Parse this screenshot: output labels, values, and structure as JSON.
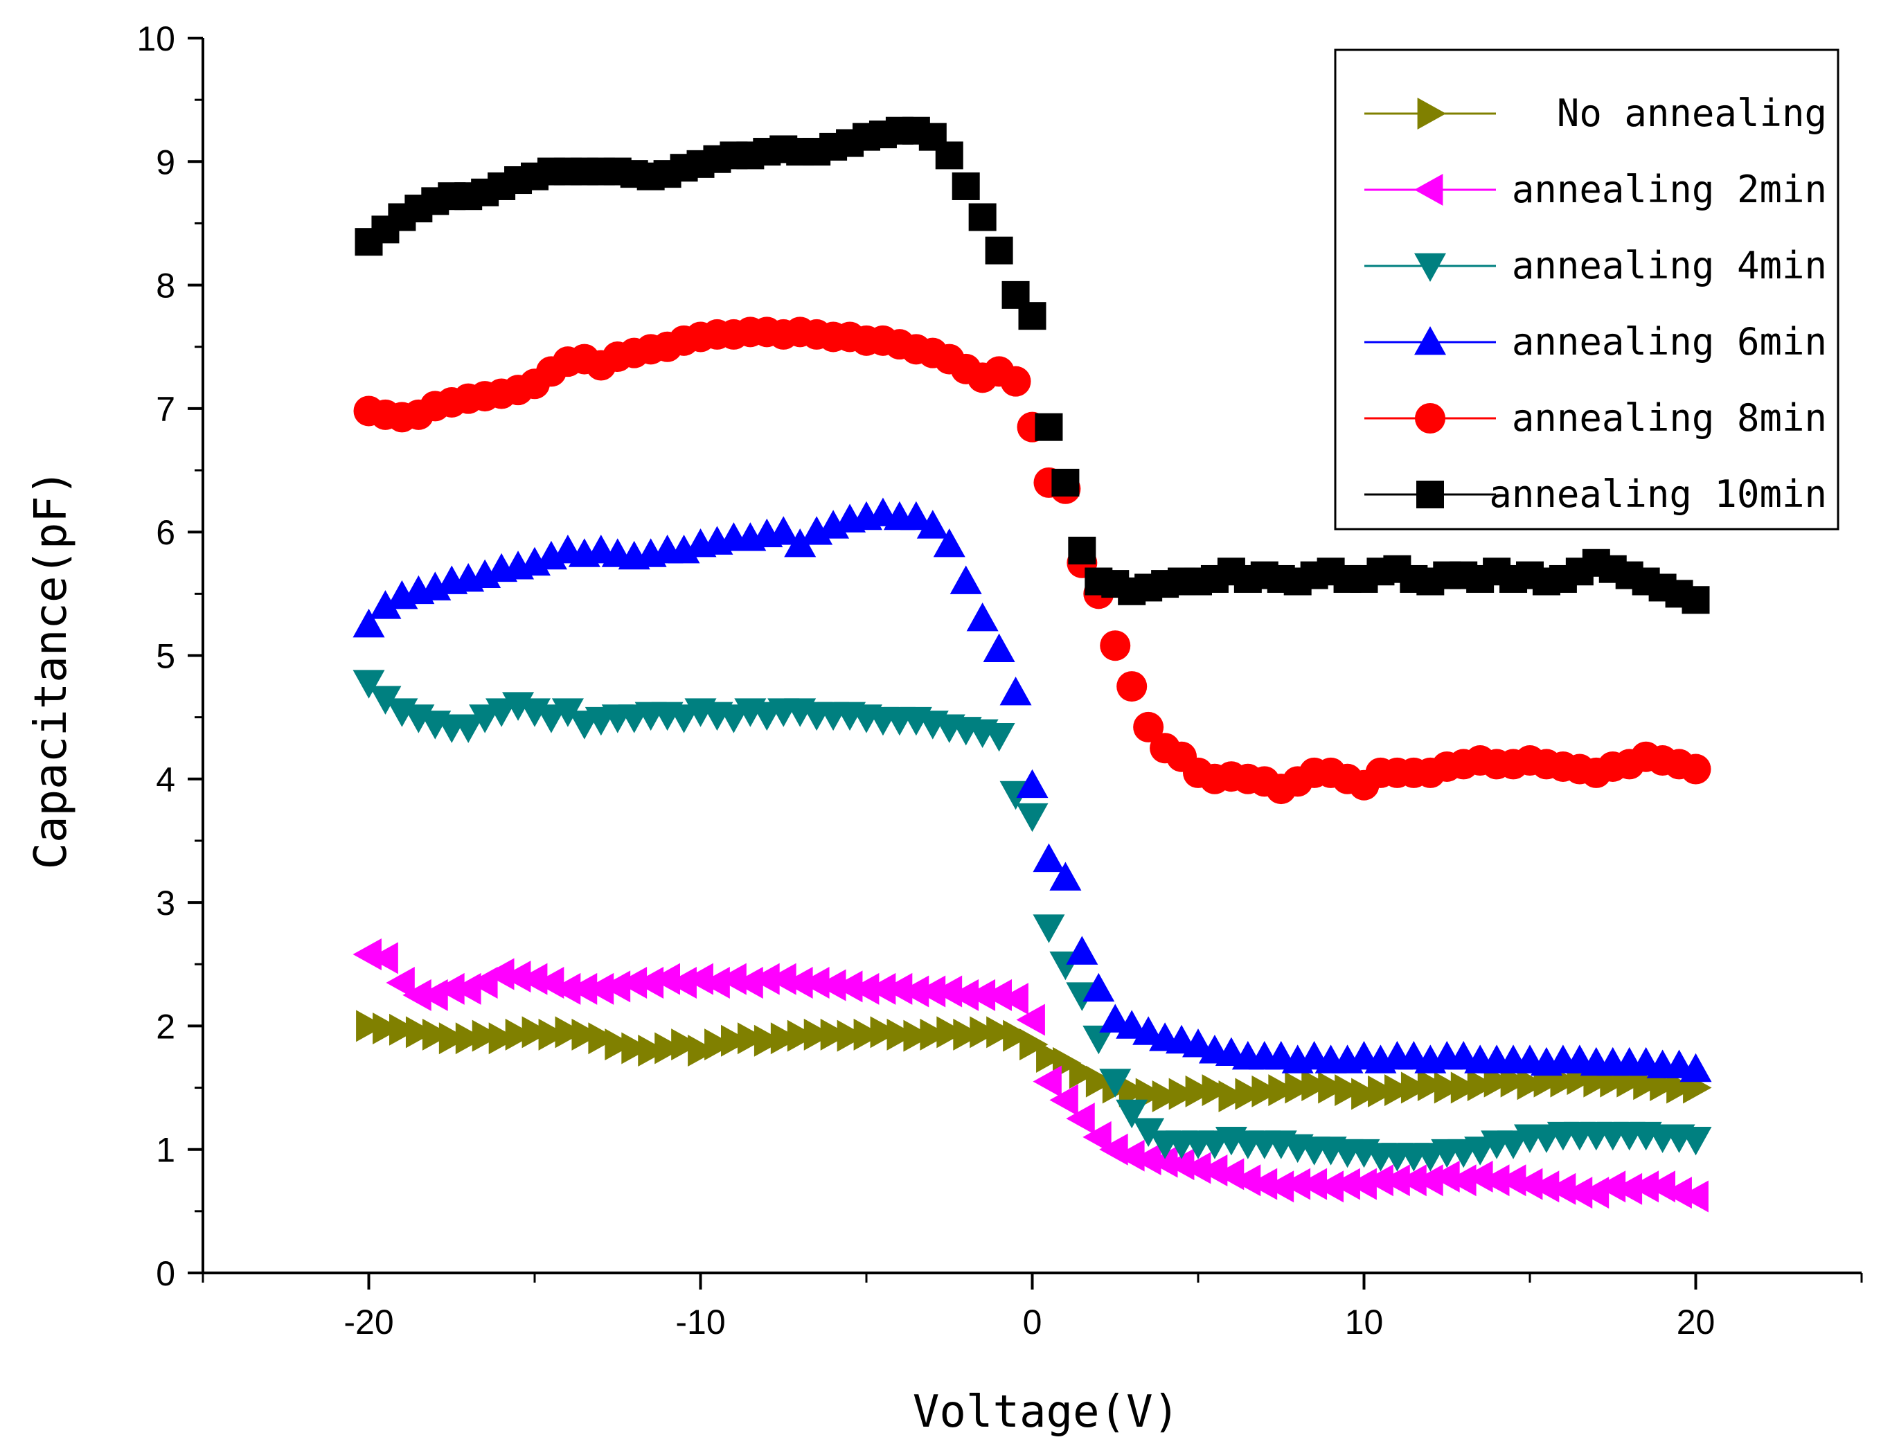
{
  "chart_data": {
    "type": "scatter",
    "title": "",
    "xlabel": "Voltage(V)",
    "ylabel": "Capacitance(pF)",
    "xlim": [
      -25,
      25
    ],
    "ylim": [
      0,
      10
    ],
    "xticks": [
      -20,
      -10,
      0,
      10,
      20
    ],
    "yticks": [
      0,
      1,
      2,
      3,
      4,
      5,
      6,
      7,
      8,
      9,
      10
    ],
    "legend_position": "top-right",
    "x": [
      -20,
      -19.5,
      -19,
      -18.5,
      -18,
      -17.5,
      -17,
      -16.5,
      -16,
      -15.5,
      -15,
      -14.5,
      -14,
      -13.5,
      -13,
      -12.5,
      -12,
      -11.5,
      -11,
      -10.5,
      -10,
      -9.5,
      -9,
      -8.5,
      -8,
      -7.5,
      -7,
      -6.5,
      -6,
      -5.5,
      -5,
      -4.5,
      -4,
      -3.5,
      -3,
      -2.5,
      -2,
      -1.5,
      -1,
      -0.5,
      0,
      0.5,
      1,
      1.5,
      2,
      2.5,
      3,
      3.5,
      4,
      4.5,
      5,
      5.5,
      6,
      6.5,
      7,
      7.5,
      8,
      8.5,
      9,
      9.5,
      10,
      10.5,
      11,
      11.5,
      12,
      12.5,
      13,
      13.5,
      14,
      14.5,
      15,
      15.5,
      16,
      16.5,
      17,
      17.5,
      18,
      18.5,
      19,
      19.5,
      20
    ],
    "series": [
      {
        "name": "No annealing",
        "marker": "triangle-right",
        "color": "#808000",
        "values": [
          2.0,
          1.98,
          1.97,
          1.95,
          1.93,
          1.9,
          1.9,
          1.92,
          1.9,
          1.93,
          1.95,
          1.93,
          1.95,
          1.93,
          1.9,
          1.85,
          1.82,
          1.8,
          1.82,
          1.85,
          1.8,
          1.85,
          1.88,
          1.9,
          1.88,
          1.9,
          1.92,
          1.93,
          1.93,
          1.92,
          1.93,
          1.95,
          1.93,
          1.92,
          1.93,
          1.95,
          1.93,
          1.95,
          1.95,
          1.92,
          1.85,
          1.75,
          1.7,
          1.62,
          1.55,
          1.5,
          1.47,
          1.45,
          1.43,
          1.45,
          1.47,
          1.48,
          1.43,
          1.45,
          1.47,
          1.48,
          1.5,
          1.52,
          1.5,
          1.48,
          1.45,
          1.47,
          1.48,
          1.5,
          1.52,
          1.5,
          1.5,
          1.52,
          1.55,
          1.55,
          1.53,
          1.55,
          1.55,
          1.57,
          1.55,
          1.55,
          1.55,
          1.53,
          1.52,
          1.5,
          1.5
        ]
      },
      {
        "name": "annealing 2min",
        "marker": "triangle-left",
        "color": "#ff00ff",
        "values": [
          2.58,
          2.55,
          2.35,
          2.25,
          2.25,
          2.3,
          2.3,
          2.35,
          2.42,
          2.4,
          2.38,
          2.35,
          2.3,
          2.3,
          2.3,
          2.32,
          2.35,
          2.35,
          2.38,
          2.35,
          2.38,
          2.35,
          2.38,
          2.35,
          2.38,
          2.38,
          2.35,
          2.35,
          2.33,
          2.32,
          2.3,
          2.3,
          2.3,
          2.28,
          2.28,
          2.28,
          2.25,
          2.25,
          2.25,
          2.22,
          2.05,
          1.55,
          1.4,
          1.25,
          1.1,
          1.0,
          0.95,
          0.92,
          0.9,
          0.88,
          0.85,
          0.83,
          0.8,
          0.75,
          0.72,
          0.7,
          0.72,
          0.72,
          0.7,
          0.72,
          0.72,
          0.75,
          0.75,
          0.75,
          0.75,
          0.78,
          0.75,
          0.78,
          0.75,
          0.75,
          0.72,
          0.7,
          0.68,
          0.65,
          0.65,
          0.7,
          0.68,
          0.7,
          0.7,
          0.65,
          0.62
        ]
      },
      {
        "name": "annealing 4min",
        "marker": "triangle-down",
        "color": "#008080",
        "values": [
          4.78,
          4.65,
          4.55,
          4.5,
          4.45,
          4.42,
          4.42,
          4.5,
          4.55,
          4.6,
          4.55,
          4.5,
          4.55,
          4.45,
          4.48,
          4.5,
          4.5,
          4.52,
          4.52,
          4.5,
          4.55,
          4.52,
          4.5,
          4.55,
          4.52,
          4.55,
          4.55,
          4.52,
          4.52,
          4.52,
          4.5,
          4.48,
          4.48,
          4.48,
          4.45,
          4.42,
          4.4,
          4.38,
          4.35,
          3.88,
          3.7,
          2.8,
          2.5,
          2.25,
          1.9,
          1.55,
          1.3,
          1.15,
          1.05,
          1.05,
          1.05,
          1.05,
          1.08,
          1.05,
          1.05,
          1.05,
          1.02,
          1.0,
          1.0,
          0.98,
          0.98,
          0.95,
          0.95,
          0.95,
          0.95,
          0.98,
          0.98,
          1.0,
          1.05,
          1.05,
          1.1,
          1.1,
          1.12,
          1.12,
          1.12,
          1.12,
          1.12,
          1.12,
          1.1,
          1.1,
          1.08
        ]
      },
      {
        "name": "annealing 6min",
        "marker": "triangle-up",
        "color": "#0000ff",
        "values": [
          5.25,
          5.4,
          5.48,
          5.52,
          5.55,
          5.6,
          5.62,
          5.65,
          5.7,
          5.72,
          5.75,
          5.8,
          5.85,
          5.82,
          5.85,
          5.82,
          5.8,
          5.82,
          5.85,
          5.85,
          5.9,
          5.92,
          5.95,
          5.95,
          5.98,
          6.0,
          5.9,
          6.0,
          6.05,
          6.1,
          6.12,
          6.15,
          6.12,
          6.12,
          6.05,
          5.9,
          5.6,
          5.3,
          5.05,
          4.7,
          3.95,
          3.35,
          3.2,
          2.6,
          2.3,
          2.05,
          2.0,
          1.95,
          1.9,
          1.88,
          1.85,
          1.8,
          1.78,
          1.75,
          1.75,
          1.75,
          1.72,
          1.75,
          1.72,
          1.72,
          1.75,
          1.72,
          1.75,
          1.75,
          1.72,
          1.75,
          1.75,
          1.72,
          1.72,
          1.72,
          1.72,
          1.7,
          1.72,
          1.72,
          1.7,
          1.7,
          1.7,
          1.7,
          1.68,
          1.68,
          1.65
        ]
      },
      {
        "name": "annealing 8min",
        "marker": "circle",
        "color": "#ff0000",
        "values": [
          6.98,
          6.95,
          6.93,
          6.95,
          7.02,
          7.05,
          7.08,
          7.1,
          7.12,
          7.15,
          7.2,
          7.3,
          7.38,
          7.4,
          7.35,
          7.42,
          7.45,
          7.48,
          7.5,
          7.55,
          7.58,
          7.6,
          7.6,
          7.62,
          7.62,
          7.6,
          7.62,
          7.6,
          7.58,
          7.58,
          7.55,
          7.55,
          7.52,
          7.48,
          7.45,
          7.4,
          7.32,
          7.25,
          7.3,
          7.22,
          6.85,
          6.4,
          6.35,
          5.75,
          5.5,
          5.08,
          4.75,
          4.42,
          4.25,
          4.18,
          4.05,
          4.0,
          4.02,
          4.0,
          3.98,
          3.92,
          3.98,
          4.05,
          4.05,
          4.0,
          3.95,
          4.05,
          4.05,
          4.05,
          4.05,
          4.1,
          4.12,
          4.15,
          4.12,
          4.12,
          4.15,
          4.12,
          4.1,
          4.08,
          4.05,
          4.1,
          4.12,
          4.18,
          4.15,
          4.12,
          4.08
        ]
      },
      {
        "name": "annealing 10min",
        "marker": "square",
        "color": "#000000",
        "values": [
          8.35,
          8.45,
          8.55,
          8.62,
          8.68,
          8.72,
          8.72,
          8.75,
          8.8,
          8.85,
          8.88,
          8.92,
          8.92,
          8.92,
          8.92,
          8.92,
          8.9,
          8.88,
          8.9,
          8.95,
          8.98,
          9.02,
          9.05,
          9.05,
          9.08,
          9.1,
          9.08,
          9.08,
          9.12,
          9.15,
          9.2,
          9.22,
          9.25,
          9.25,
          9.2,
          9.05,
          8.8,
          8.55,
          8.28,
          7.92,
          7.75,
          6.85,
          6.4,
          5.85,
          5.6,
          5.58,
          5.52,
          5.55,
          5.58,
          5.6,
          5.6,
          5.62,
          5.68,
          5.62,
          5.65,
          5.62,
          5.6,
          5.65,
          5.68,
          5.62,
          5.62,
          5.68,
          5.7,
          5.62,
          5.6,
          5.65,
          5.65,
          5.62,
          5.68,
          5.62,
          5.65,
          5.6,
          5.62,
          5.68,
          5.75,
          5.7,
          5.65,
          5.6,
          5.55,
          5.5,
          5.45
        ]
      }
    ]
  }
}
